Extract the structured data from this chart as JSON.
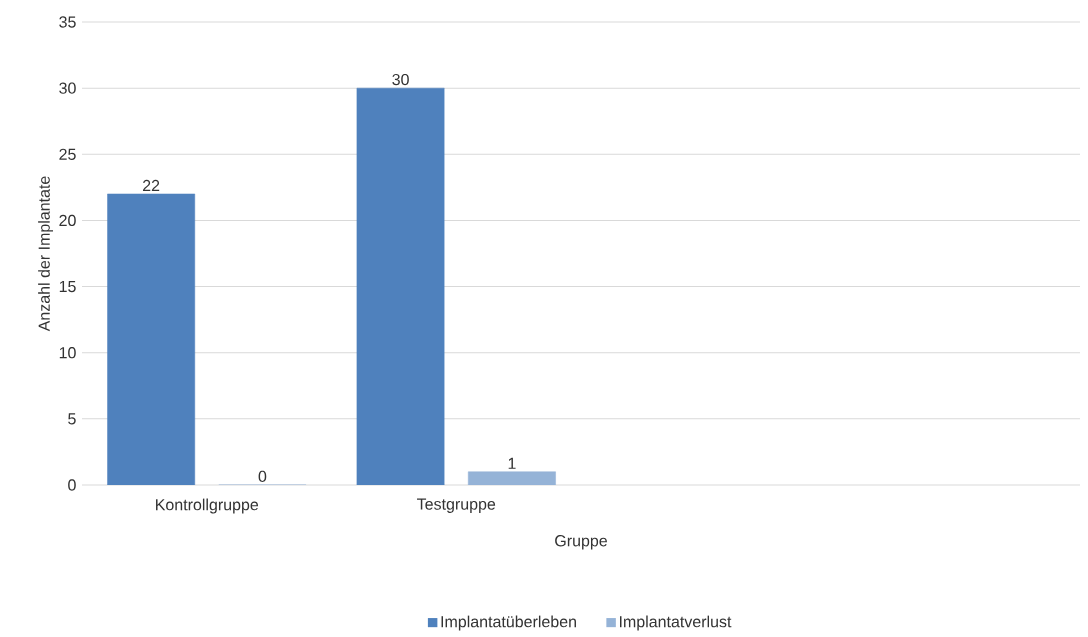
{
  "chart_data": {
    "type": "bar",
    "xlabel": "Gruppe",
    "ylabel": "Anzahl der Implantate",
    "categories": [
      "Kontrollgruppe",
      "Testgruppe",
      null,
      null
    ],
    "series": [
      {
        "name": "Implantatüberleben",
        "color": "#4f81bd",
        "values": [
          22,
          30,
          null,
          null
        ]
      },
      {
        "name": "Implantatverlust",
        "color": "#95b3d7",
        "values": [
          0,
          1,
          null,
          null
        ]
      }
    ],
    "ylim": [
      0,
      35
    ],
    "yticks": [
      0,
      5,
      10,
      15,
      20,
      25,
      30,
      35
    ],
    "grid": "y",
    "legend": "bottom",
    "data_labels": true
  }
}
